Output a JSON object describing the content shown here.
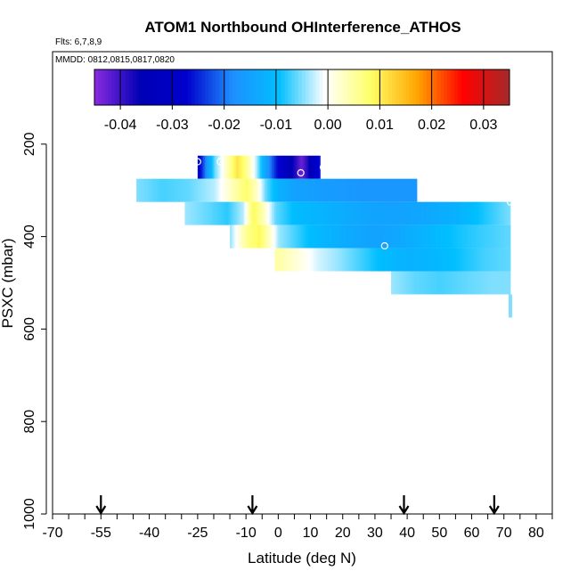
{
  "chart_data": {
    "type": "heatmap",
    "title": "ATOM1 Northbound OHInterference_ATHOS",
    "flights_label": "Flts: 6,7,8,9",
    "dates_label": "MMDD: 0812,0815,0817,0820",
    "xlabel": "Latitude (deg N)",
    "ylabel": "PSXC (mbar)",
    "xlim": [
      -70,
      85
    ],
    "ylim": [
      1000,
      0
    ],
    "x_ticks": [
      -70,
      -55,
      -40,
      -25,
      -10,
      0,
      10,
      20,
      30,
      40,
      50,
      60,
      70,
      80
    ],
    "x_tick_labels": [
      "-70",
      "-55",
      "-40",
      "-25",
      "-10",
      "0",
      "10",
      "20",
      "30",
      "40",
      "50",
      "60",
      "70",
      "80"
    ],
    "y_ticks": [
      200,
      400,
      600,
      800,
      1000
    ],
    "y_tick_labels": [
      "200",
      "400",
      "600",
      "800",
      "1000"
    ],
    "colorbar": {
      "min": -0.045,
      "max": 0.035,
      "ticks": [
        -0.04,
        -0.03,
        -0.02,
        -0.01,
        0.0,
        0.01,
        0.02,
        0.03
      ],
      "tick_labels": [
        "-0.04",
        "-0.03",
        "-0.02",
        "-0.01",
        "0.00",
        "0.01",
        "0.02",
        "0.03"
      ],
      "colors": [
        "#8a2be2",
        "#0000b4",
        "#0000cd",
        "#1e90ff",
        "#00bfff",
        "#ffffff",
        "#ffff66",
        "#ffa500",
        "#ff0000",
        "#a52a2a"
      ]
    },
    "flight_latitude_markers": [
      -55,
      -8,
      39,
      67
    ],
    "bands": [
      {
        "p_top": 225,
        "p_bottom": 275,
        "lat": [
          -25,
          -20,
          -15,
          -13,
          -11,
          -9,
          -7,
          -4,
          -1,
          2,
          5,
          7,
          9,
          11,
          13
        ],
        "values": [
          -0.03,
          -0.006,
          0.006,
          0.011,
          0.008,
          0.003,
          -0.003,
          -0.015,
          -0.025,
          -0.032,
          -0.038,
          -0.043,
          -0.038,
          -0.03,
          -0.025
        ]
      },
      {
        "p_top": 275,
        "p_bottom": 325,
        "lat": [
          -44,
          -36,
          -28,
          -20,
          -14,
          -10,
          -7,
          -4,
          0,
          5,
          15,
          25,
          35,
          43
        ],
        "values": [
          -0.005,
          -0.007,
          -0.006,
          -0.003,
          0.004,
          0.008,
          0.003,
          -0.006,
          -0.012,
          -0.015,
          -0.016,
          -0.017,
          -0.017,
          -0.017
        ]
      },
      {
        "p_top": 325,
        "p_bottom": 375,
        "lat": [
          -29,
          -22,
          -16,
          -11,
          -8,
          -5,
          -1,
          5,
          15,
          25,
          35,
          45,
          55,
          65,
          72
        ],
        "values": [
          -0.004,
          -0.006,
          -0.008,
          -0.003,
          0.009,
          0.004,
          -0.006,
          -0.01,
          -0.012,
          -0.014,
          -0.015,
          -0.014,
          -0.012,
          -0.008,
          -0.005
        ]
      },
      {
        "p_top": 375,
        "p_bottom": 425,
        "lat": [
          -15,
          -10,
          -6,
          -3,
          0,
          5,
          10,
          20,
          30,
          40,
          50,
          60,
          72
        ],
        "values": [
          -0.004,
          0.006,
          0.009,
          0.003,
          -0.004,
          -0.007,
          -0.01,
          -0.013,
          -0.015,
          -0.013,
          -0.01,
          -0.008,
          -0.006
        ]
      },
      {
        "p_top": 425,
        "p_bottom": 475,
        "lat": [
          -1,
          5,
          12,
          18,
          25,
          32,
          40,
          48,
          56,
          64,
          72
        ],
        "values": [
          0.005,
          0.002,
          -0.002,
          -0.004,
          -0.007,
          -0.01,
          -0.012,
          -0.011,
          -0.009,
          -0.007,
          -0.006
        ]
      },
      {
        "p_top": 475,
        "p_bottom": 525,
        "lat": [
          35,
          42,
          50,
          58,
          66,
          72
        ],
        "values": [
          -0.004,
          -0.006,
          -0.007,
          -0.006,
          -0.005,
          -0.005
        ]
      },
      {
        "p_top": 525,
        "p_bottom": 575,
        "lat": [
          72
        ],
        "values": [
          -0.005
        ]
      }
    ],
    "circle_points": [
      {
        "lat": -25,
        "p": 238
      },
      {
        "lat": -18,
        "p": 238
      },
      {
        "lat": 7,
        "p": 262
      },
      {
        "lat": 14,
        "p": 250
      },
      {
        "lat": 33,
        "p": 420
      },
      {
        "lat": 72,
        "p": 325
      }
    ]
  }
}
